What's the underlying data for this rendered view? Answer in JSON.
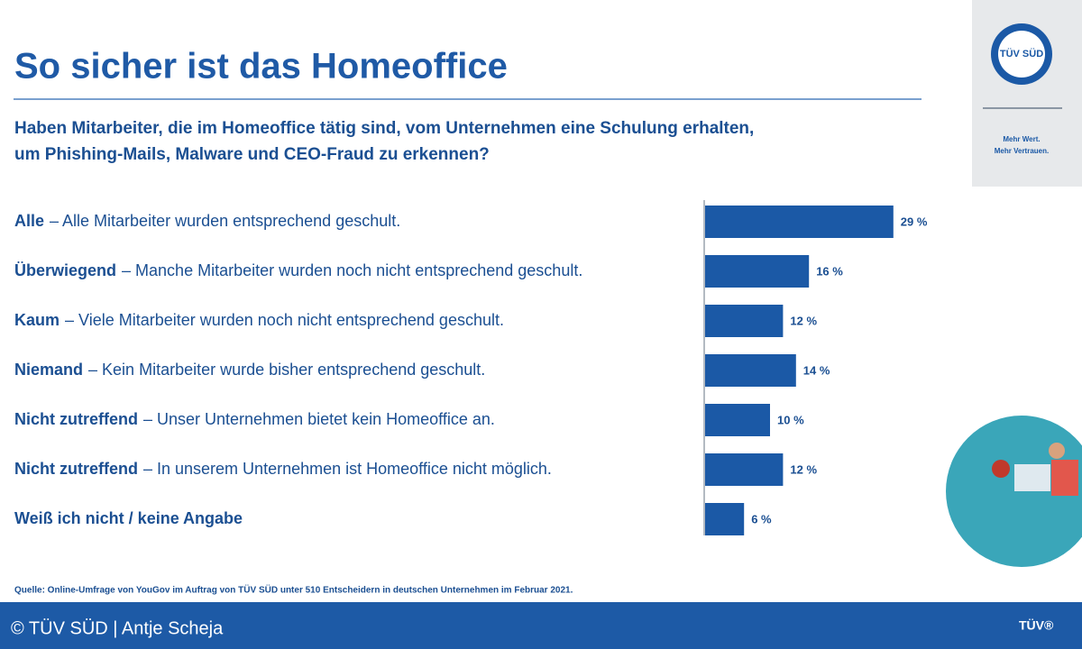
{
  "title": "So sicher ist das Homeoffice",
  "logo": {
    "name": "TÜV SÜD",
    "slogan": [
      "Mehr Wert.",
      "Mehr Vertrauen."
    ]
  },
  "chart_data": {
    "type": "bar",
    "orientation": "horizontal",
    "question": [
      "Haben Mitarbeiter, die im Homeoffice tätig sind, vom Unternehmen eine Schulung erhalten,",
      "um Phishing-Mails, Malware und CEO-Fraud zu erkennen?"
    ],
    "categories": [
      "Alle",
      "Überwiegend",
      "Kaum",
      "Niemand",
      "Nicht zutreffend",
      "Nicht zutreffend",
      "Weiß ich nicht / keine Angabe"
    ],
    "descriptions": [
      "– Alle Mitarbeiter wurden entsprechend geschult.",
      "– Manche Mitarbeiter wurden noch nicht entsprechend geschult.",
      "– Viele Mitarbeiter wurden noch nicht entsprechend geschult.",
      "– Kein Mitarbeiter wurde bisher entsprechend geschult.",
      "– Unser Unternehmen bietet kein Homeoffice an.",
      "– In unserem Unternehmen ist Homeoffice nicht möglich.",
      null
    ],
    "values": [
      29,
      16,
      12,
      14,
      10,
      12,
      6
    ],
    "value_labels": [
      "29 %",
      "16 %",
      "12 %",
      "14 %",
      "10 %",
      "12 %",
      "6 %"
    ],
    "color": "#1b59a6",
    "source": "Quelle: Online-Umfrage von YouGov im Auftrag von TÜV SÜD unter 510 Entscheidern in deutschen Unternehmen im Februar 2021."
  },
  "footer": {
    "credit": "© TÜV SÜD | Antje Scheja",
    "brand": "TÜV®"
  }
}
